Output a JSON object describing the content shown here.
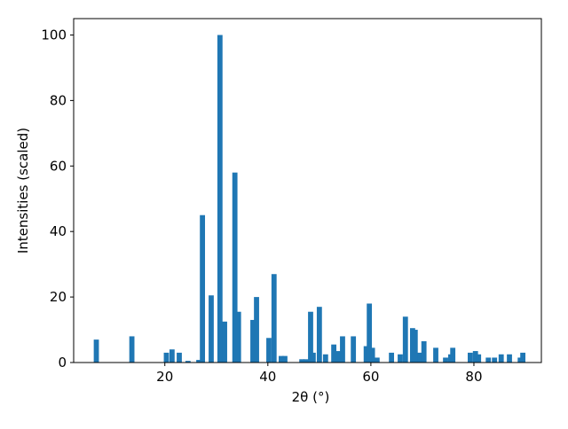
{
  "chart_data": {
    "type": "bar",
    "xlabel": "2θ (°)",
    "ylabel": "Intensities (scaled)",
    "x": [
      6.7,
      13.6,
      20.3,
      21.4,
      22.8,
      24.5,
      26.6,
      27.3,
      29.0,
      30.7,
      31.6,
      33.6,
      34.3,
      37.1,
      37.8,
      40.2,
      41.2,
      42.6,
      43.3,
      46.6,
      47.4,
      48.3,
      48.8,
      50.0,
      51.2,
      52.8,
      53.6,
      54.5,
      56.6,
      59.1,
      59.7,
      60.3,
      61.2,
      64.0,
      65.7,
      66.7,
      68.1,
      68.6,
      69.5,
      70.3,
      72.6,
      74.5,
      75.5,
      75.9,
      79.3,
      80.3,
      80.9,
      82.8,
      84.0,
      85.3,
      86.9,
      89.0,
      89.5
    ],
    "values": [
      7,
      8,
      3,
      4,
      3,
      0.5,
      0.8,
      45,
      20.5,
      100,
      12.5,
      58,
      15.5,
      13,
      20,
      7.5,
      27,
      2,
      2,
      1,
      1,
      15.5,
      3,
      17,
      2.5,
      5.5,
      3.5,
      8,
      8,
      5,
      18,
      4.5,
      1.5,
      3,
      2.5,
      14,
      10.5,
      10,
      3,
      6.5,
      4.5,
      1.5,
      2.5,
      4.5,
      3,
      3.5,
      2.5,
      1.5,
      1.5,
      2.5,
      2.5,
      1.5,
      3
    ],
    "color": "#1f77b4",
    "xlim": [
      2.3,
      93.1
    ],
    "ylim": [
      0,
      105
    ],
    "xticks": [
      20,
      40,
      60,
      80
    ],
    "yticks": [
      0,
      20,
      40,
      60,
      80,
      100
    ]
  }
}
